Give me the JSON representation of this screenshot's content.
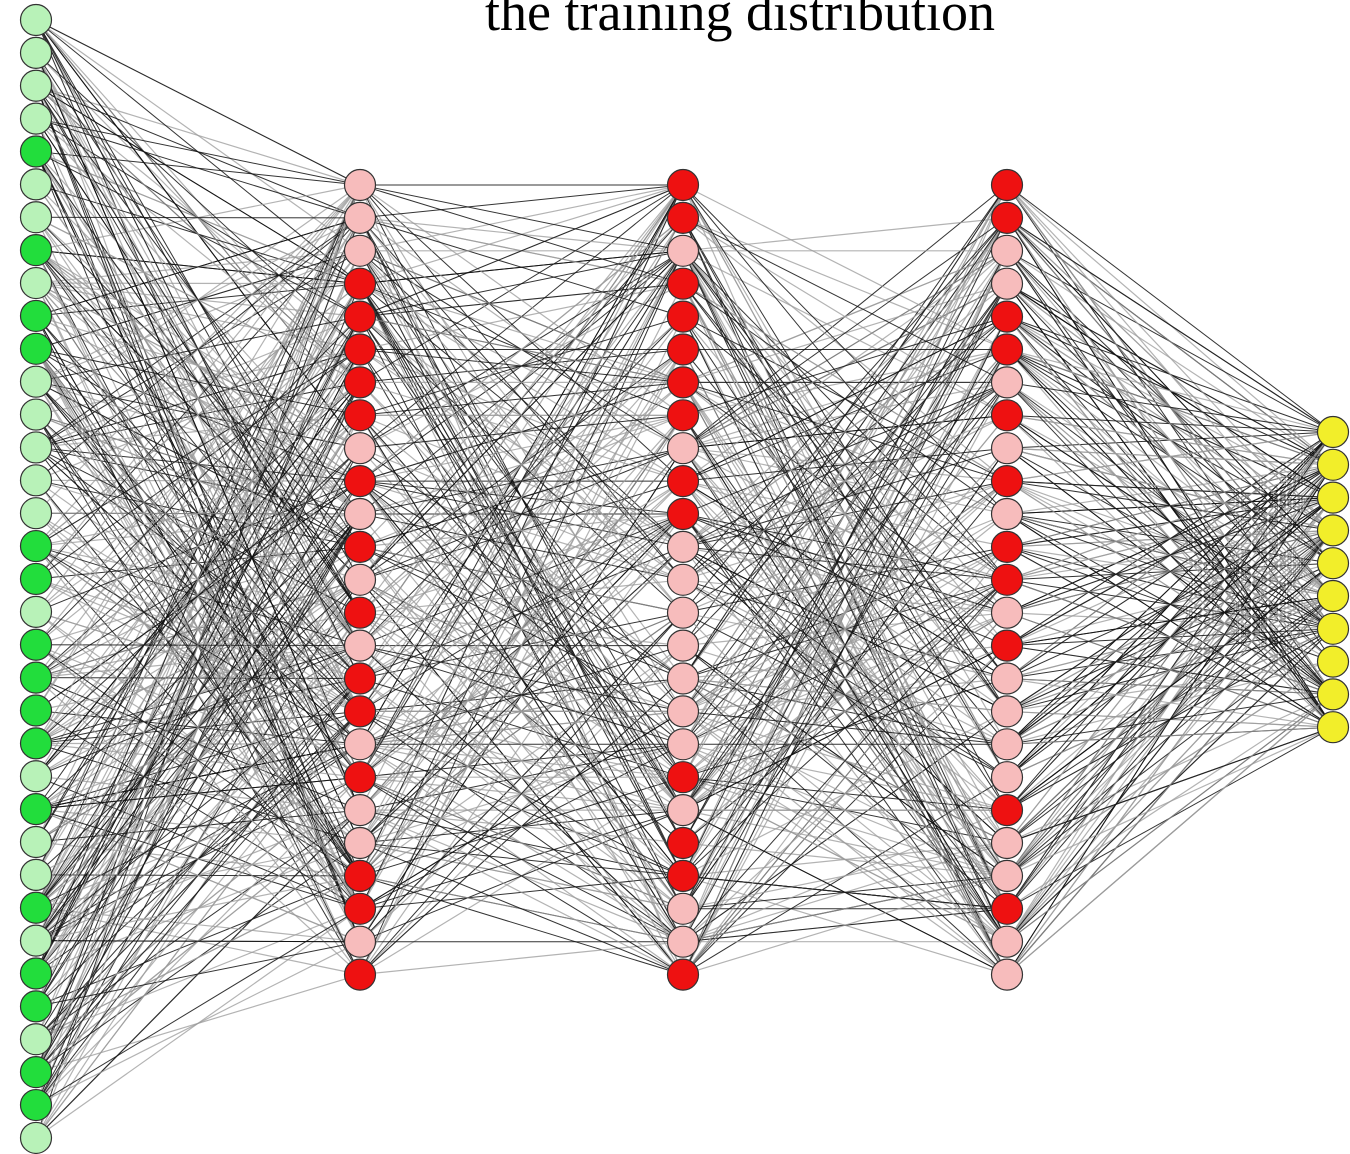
{
  "title": "the training distribution"
}
